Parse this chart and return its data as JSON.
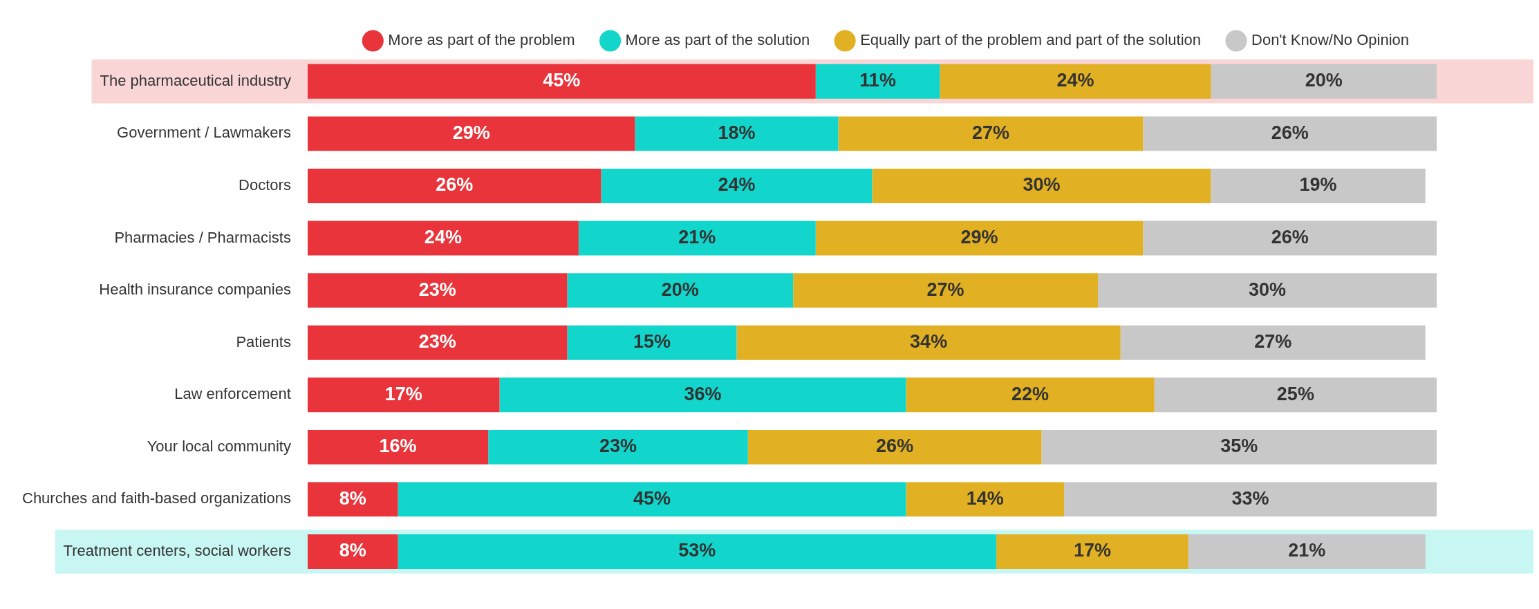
{
  "chart_data": {
    "type": "bar",
    "orientation": "horizontal",
    "stacked": true,
    "legend": "top",
    "grid": false,
    "tick_labels": "y",
    "xlim": [
      0,
      100
    ],
    "categories": [
      "The pharmaceutical industry",
      "Government / Lawmakers",
      "Doctors",
      "Pharmacies / Pharmacists",
      "Health insurance companies",
      "Patients",
      "Law enforcement",
      "Your local community",
      "Churches and faith-based organizations",
      "Treatment centers, social workers"
    ],
    "series": [
      {
        "name": "More as part of the problem",
        "color": "#e8343a",
        "values": [
          45,
          29,
          26,
          24,
          23,
          23,
          17,
          16,
          8,
          8
        ],
        "value_labels": [
          "45%",
          "29%",
          "26%",
          "24%",
          "23%",
          "23%",
          "17%",
          "16%",
          "8%",
          "8%"
        ]
      },
      {
        "name": "More as part of the solution",
        "color": "#12d6cc",
        "values": [
          11,
          18,
          24,
          21,
          20,
          15,
          36,
          23,
          45,
          53
        ],
        "value_labels": [
          "11%",
          "18%",
          "24%",
          "21%",
          "20%",
          "15%",
          "36%",
          "23%",
          "45%",
          "53%"
        ]
      },
      {
        "name": "Equally part of the problem and part of the solution",
        "color": "#e1b023",
        "values": [
          24,
          27,
          30,
          29,
          27,
          34,
          22,
          26,
          14,
          17
        ],
        "value_labels": [
          "24%",
          "27%",
          "30%",
          "29%",
          "27%",
          "34%",
          "22%",
          "26%",
          "14%",
          "17%"
        ]
      },
      {
        "name": "Don't Know/No Opinion",
        "color": "#c8c8c8",
        "values": [
          20,
          26,
          19,
          26,
          30,
          27,
          25,
          35,
          33,
          21
        ],
        "value_labels": [
          "20%",
          "26%",
          "19%",
          "26%",
          "30%",
          "27%",
          "25%",
          "35%",
          "33%",
          "21%"
        ]
      }
    ],
    "bands": [
      {
        "axis": "y",
        "from": "The pharmaceutical industry",
        "to": "The pharmaceutical industry",
        "color": "#f9d5d5"
      },
      {
        "axis": "y",
        "from": "Treatment centers, social workers",
        "to": "Treatment centers, social workers",
        "color": "#c8f7f3"
      }
    ]
  }
}
